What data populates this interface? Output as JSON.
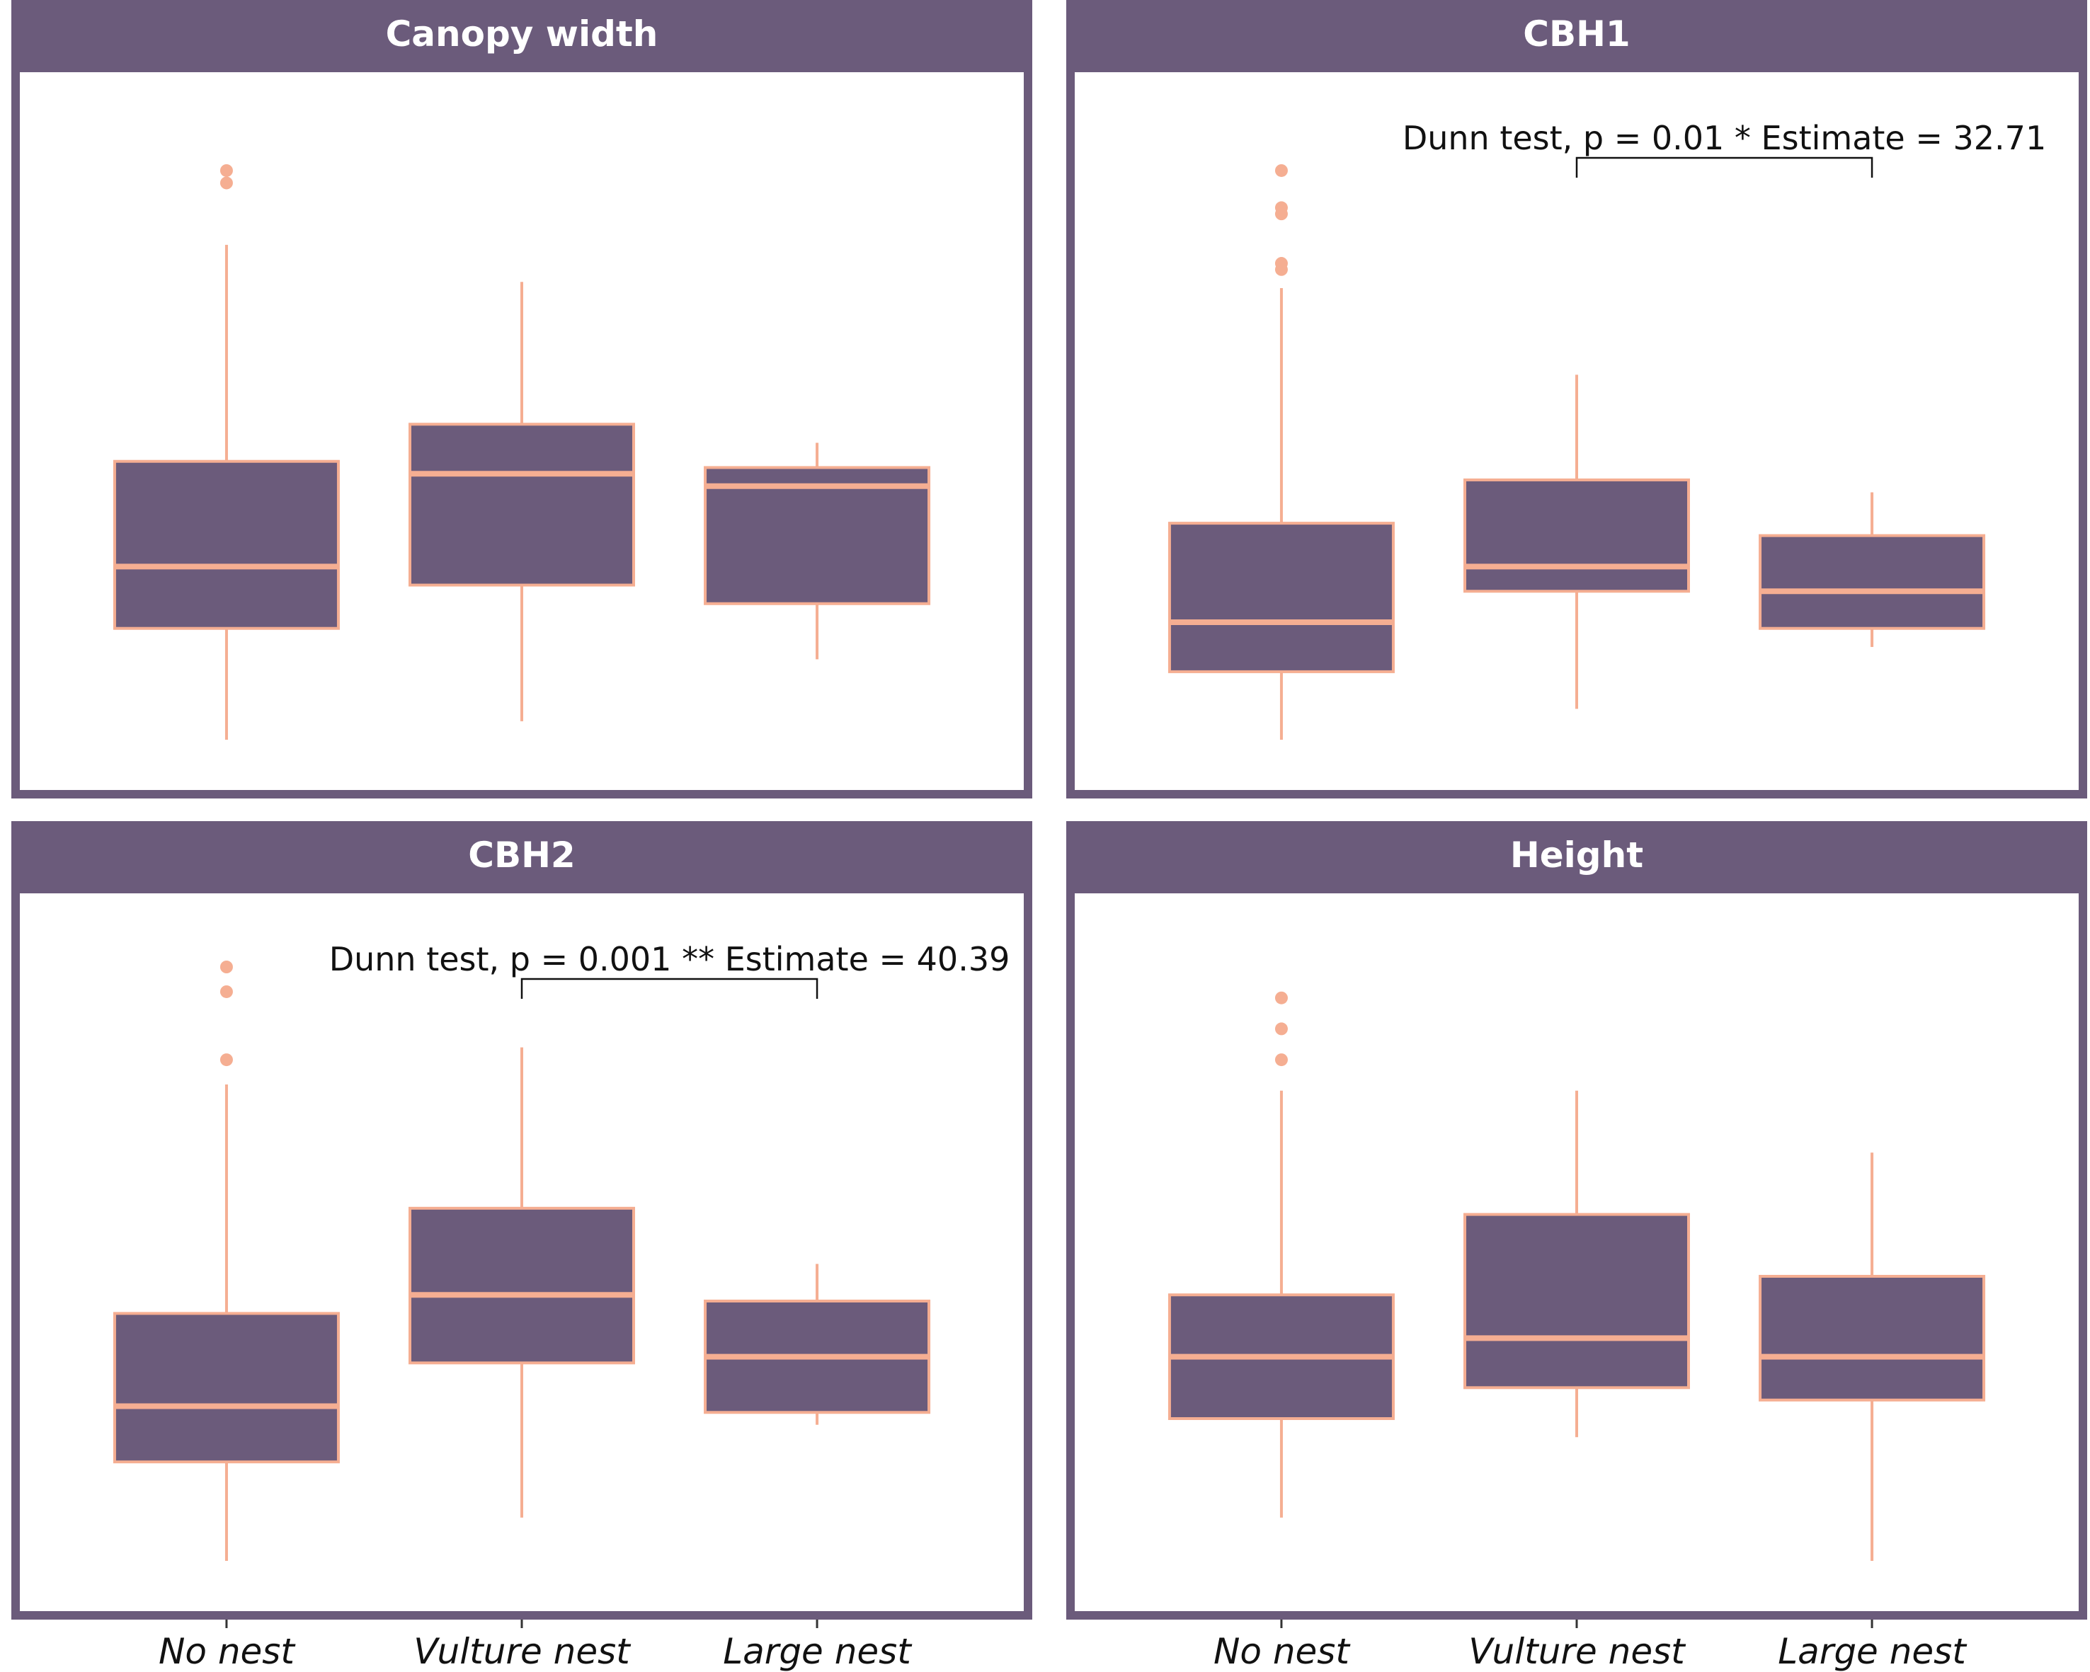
{
  "colors": {
    "box_fill": "#6b5b7b",
    "box_line": "#f5ae92",
    "panel_border": "#6b5b7b",
    "strip_bg": "#6b5b7b",
    "strip_text": "#ffffff",
    "bracket": "#111111",
    "background": "#ffffff"
  },
  "chart_data": [
    {
      "type": "box",
      "title": "Canopy width",
      "categories": [
        "No nest",
        "Vulture nest",
        "Large nest"
      ],
      "xlabel": "",
      "ylabel": "",
      "ylim": [
        0,
        100
      ],
      "boxes": [
        {
          "category": "No nest",
          "whisker_low": 4,
          "q1": 22,
          "median": 32,
          "q3": 49,
          "whisker_high": 84,
          "outliers": [
            94,
            96
          ]
        },
        {
          "category": "Vulture nest",
          "whisker_low": 7,
          "q1": 29,
          "median": 47,
          "q3": 55,
          "whisker_high": 78,
          "outliers": []
        },
        {
          "category": "Large nest",
          "whisker_low": 17,
          "q1": 26,
          "median": 45,
          "q3": 48,
          "whisker_high": 52,
          "outliers": []
        }
      ],
      "annotation": null
    },
    {
      "type": "box",
      "title": "CBH1",
      "categories": [
        "No nest",
        "Vulture nest",
        "Large nest"
      ],
      "xlabel": "",
      "ylabel": "",
      "ylim": [
        0,
        100
      ],
      "boxes": [
        {
          "category": "No nest",
          "whisker_low": 4,
          "q1": 15,
          "median": 23,
          "q3": 39,
          "whisker_high": 77,
          "outliers": [
            80,
            81,
            89,
            90,
            96
          ]
        },
        {
          "category": "Vulture nest",
          "whisker_low": 9,
          "q1": 28,
          "median": 32,
          "q3": 46,
          "whisker_high": 63,
          "outliers": []
        },
        {
          "category": "Large nest",
          "whisker_low": 19,
          "q1": 22,
          "median": 28,
          "q3": 37,
          "whisker_high": 44,
          "outliers": []
        }
      ],
      "annotation": {
        "text": "Dunn test, p = 0.01 *   Estimate = 32.71",
        "from": "Vulture nest",
        "to": "Large nest"
      }
    },
    {
      "type": "box",
      "title": "CBH2",
      "categories": [
        "No nest",
        "Vulture nest",
        "Large nest"
      ],
      "xlabel": "",
      "ylabel": "",
      "ylim": [
        0,
        100
      ],
      "boxes": [
        {
          "category": "No nest",
          "whisker_low": 4,
          "q1": 20,
          "median": 29,
          "q3": 44,
          "whisker_high": 81,
          "outliers": [
            85,
            96,
            100
          ]
        },
        {
          "category": "Vulture nest",
          "whisker_low": 11,
          "q1": 36,
          "median": 47,
          "q3": 61,
          "whisker_high": 87,
          "outliers": []
        },
        {
          "category": "Large nest",
          "whisker_low": 26,
          "q1": 28,
          "median": 37,
          "q3": 46,
          "whisker_high": 52,
          "outliers": []
        }
      ],
      "annotation": {
        "text": "Dunn test, p = 0.001 **   Estimate = 40.39",
        "from": "Vulture nest",
        "to": "Large nest"
      }
    },
    {
      "type": "box",
      "title": "Height",
      "categories": [
        "No nest",
        "Vulture nest",
        "Large nest"
      ],
      "xlabel": "",
      "ylabel": "",
      "ylim": [
        0,
        100
      ],
      "boxes": [
        {
          "category": "No nest",
          "whisker_low": 11,
          "q1": 27,
          "median": 37,
          "q3": 47,
          "whisker_high": 80,
          "outliers": [
            85,
            90,
            95
          ]
        },
        {
          "category": "Vulture nest",
          "whisker_low": 24,
          "q1": 32,
          "median": 40,
          "q3": 60,
          "whisker_high": 80,
          "outliers": []
        },
        {
          "category": "Large nest",
          "whisker_low": 4,
          "q1": 30,
          "median": 37,
          "q3": 50,
          "whisker_high": 70,
          "outliers": []
        }
      ],
      "annotation": null
    }
  ]
}
